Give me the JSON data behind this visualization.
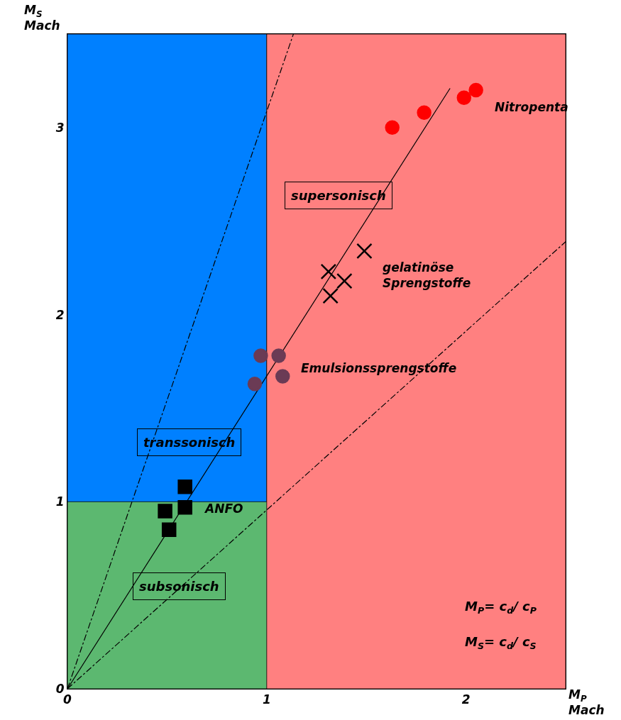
{
  "chart_data": {
    "type": "scatter",
    "xlabel": "M$_{P}$\nMach",
    "ylabel": "M$_{S}$\nMach",
    "xlim": [
      0,
      2.5
    ],
    "ylim": [
      0,
      3.5
    ],
    "xticks": [
      0,
      1,
      2
    ],
    "yticks": [
      0,
      1,
      2,
      3
    ],
    "grid": false,
    "legend": false,
    "bands": [
      {
        "axis": "x",
        "from": 0,
        "to": 1,
        "color": "#0080ff"
      },
      {
        "axis": "y",
        "from": 0,
        "to": 1,
        "color": "#5cb870"
      },
      {
        "axis": "x",
        "from": 1,
        "to": 2.5,
        "color": "#ff8080"
      }
    ],
    "series": [
      {
        "type": "line",
        "color": "#000000",
        "line_style": "solid",
        "x": [
          0,
          1.92
        ],
        "values": [
          0,
          3.21
        ]
      },
      {
        "type": "line",
        "color": "#000000",
        "line_style": "dashdot",
        "x": [
          0,
          1.134
        ],
        "values": [
          0,
          3.5
        ]
      },
      {
        "type": "line",
        "color": "#000000",
        "line_style": "dashdot",
        "x": [
          0,
          2.5
        ],
        "values": [
          0,
          2.39
        ]
      },
      {
        "name": "Nitropenta",
        "color": "#ff0000",
        "marker": "circle",
        "x": [
          1.63,
          1.79,
          1.99,
          2.05
        ],
        "values": [
          3.0,
          3.08,
          3.16,
          3.2
        ]
      },
      {
        "name": "gelatinöse\nSprengstoffe",
        "color": "#000000",
        "marker": "cross",
        "x": [
          1.49,
          1.31,
          1.39,
          1.32
        ],
        "values": [
          2.34,
          2.23,
          2.18,
          2.1
        ]
      },
      {
        "name": "Emulsionssprengstoffe",
        "color": "#6b3b55",
        "marker": "circle",
        "x": [
          0.97,
          1.06,
          0.94,
          1.08
        ],
        "values": [
          1.78,
          1.78,
          1.63,
          1.67
        ]
      },
      {
        "name": "ANFO",
        "color": "#000000",
        "marker": "square",
        "x": [
          0.59,
          0.49,
          0.59,
          0.51
        ],
        "values": [
          1.08,
          0.95,
          0.97,
          0.85
        ]
      }
    ],
    "annotations": [
      "supersonisch",
      "transsonisch",
      "subsonisch",
      "M$_{P}$= c$_{d}$/ c$_{P}$",
      "M$_{S}$= c$_{d}$/ c$_{S}$"
    ]
  }
}
